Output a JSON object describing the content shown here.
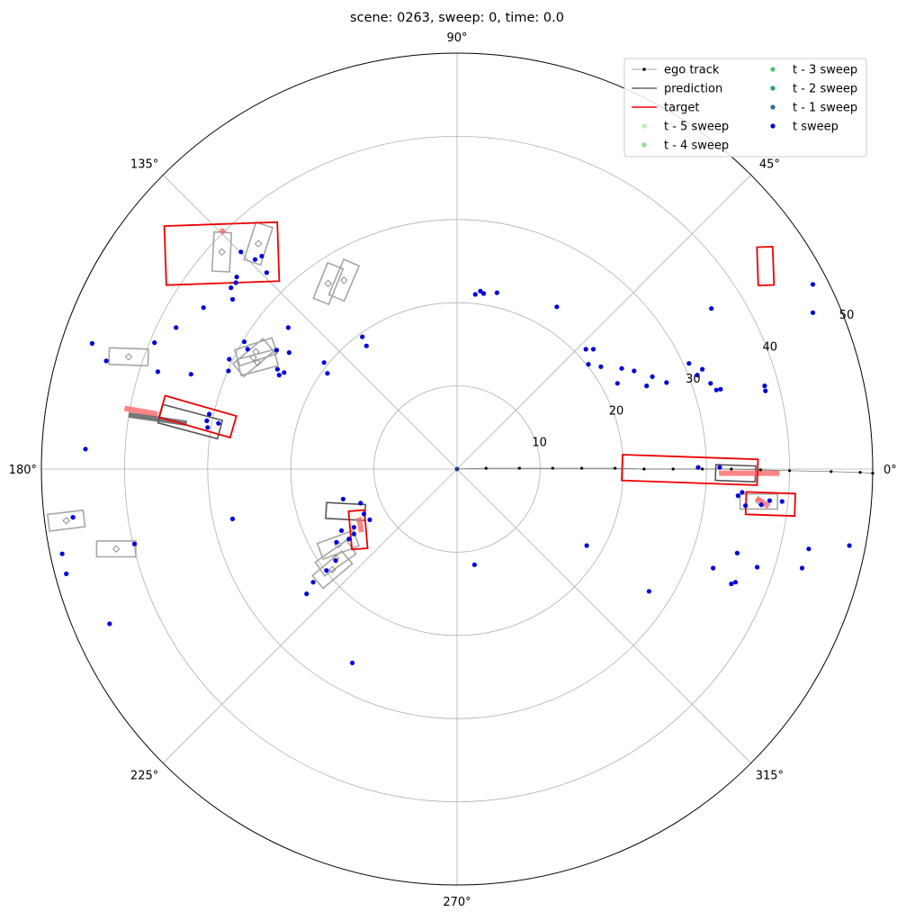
{
  "chart_data": {
    "type": "scatter",
    "projection": "polar",
    "title": "scene: 0263, sweep: 0, time: 0.0",
    "theta_ticks_deg": [
      0,
      45,
      90,
      135,
      180,
      225,
      270,
      315
    ],
    "theta_tick_labels": [
      "0°",
      "45°",
      "90°",
      "135°",
      "180°",
      "225°",
      "270°",
      "315°"
    ],
    "r_ticks": [
      10,
      20,
      30,
      40,
      50
    ],
    "r_tick_labels": [
      "10",
      "20",
      "30",
      "40",
      "50"
    ],
    "r_label_angle_deg": 22.5,
    "rlim": [
      0,
      50
    ],
    "grid": true,
    "legend": {
      "location": "upper right",
      "columns": 2,
      "entries": [
        {
          "label": "ego track",
          "kind": "line-marker",
          "color": "#000000"
        },
        {
          "label": "prediction",
          "kind": "line",
          "color": "#666666"
        },
        {
          "label": "target",
          "kind": "line",
          "color": "#ff0000"
        },
        {
          "label": "t - 5 sweep",
          "kind": "dot",
          "color": "#b4f5b4"
        },
        {
          "label": "t - 4 sweep",
          "kind": "dot",
          "color": "#86e486"
        },
        {
          "label": "t - 3 sweep",
          "kind": "dot",
          "color": "#4dc36f"
        },
        {
          "label": "t - 2 sweep",
          "kind": "dot",
          "color": "#2a9a7e"
        },
        {
          "label": "t - 1 sweep",
          "kind": "dot",
          "color": "#2a6e9a"
        },
        {
          "label": "t sweep",
          "kind": "dot",
          "color": "#0000dd"
        }
      ]
    },
    "series": [
      {
        "name": "ego track",
        "color": "#000000",
        "points_xy": [
          [
            0,
            0
          ],
          [
            3.5,
            0.1
          ],
          [
            7.5,
            0.1
          ],
          [
            11.5,
            0.1
          ],
          [
            15,
            0.1
          ],
          [
            19,
            0.1
          ],
          [
            22.5,
            0
          ],
          [
            26,
            0
          ],
          [
            29.5,
            0
          ],
          [
            33,
            0
          ],
          [
            36.5,
            -0.1
          ],
          [
            40,
            -0.2
          ],
          [
            45,
            -0.3
          ],
          [
            48.5,
            -0.4
          ],
          [
            50,
            -0.5
          ]
        ]
      },
      {
        "name": "t sweep",
        "color": "#0000dd",
        "points_xy": [
          [
            2.2,
            21.0
          ],
          [
            2.8,
            21.4
          ],
          [
            3.2,
            21.1
          ],
          [
            4.8,
            21.2
          ],
          [
            12,
            19.5
          ],
          [
            15.5,
            14.4
          ],
          [
            16.4,
            14.4
          ],
          [
            15.8,
            12.6
          ],
          [
            17.3,
            12.3
          ],
          [
            19.8,
            12.1
          ],
          [
            19.3,
            10.3
          ],
          [
            21.3,
            11.8
          ],
          [
            23.5,
            11.1
          ],
          [
            22.8,
            10.0
          ],
          [
            25.2,
            10.4
          ],
          [
            27.9,
            12.7
          ],
          [
            28.9,
            11.3
          ],
          [
            29.5,
            12.0
          ],
          [
            30.5,
            10.3
          ],
          [
            31.7,
            9.6
          ],
          [
            31.2,
            9.5
          ],
          [
            30.6,
            19.3
          ],
          [
            37.0,
            10.0
          ],
          [
            37.1,
            9.4
          ],
          [
            42.8,
            22.2
          ],
          [
            42.8,
            18.8
          ],
          [
            47.6,
            33.3
          ],
          [
            51.5,
            28.5
          ],
          [
            29.0,
            0.2
          ],
          [
            31.6,
            0.2
          ],
          [
            33.8,
            -3.2
          ],
          [
            34.3,
            -2.8
          ],
          [
            34.7,
            -4.4
          ],
          [
            36.6,
            -4.3
          ],
          [
            37.6,
            -3.8
          ],
          [
            39.1,
            -3.9
          ],
          [
            15.6,
            -9.2
          ],
          [
            23.1,
            -14.7
          ],
          [
            30.8,
            -11.9
          ],
          [
            33.7,
            -10.1
          ],
          [
            33.5,
            -13.6
          ],
          [
            33.0,
            -13.8
          ],
          [
            36.1,
            -11.8
          ],
          [
            41.5,
            -11.9
          ],
          [
            42.3,
            -9.6
          ],
          [
            47.2,
            -9.2
          ],
          [
            2.1,
            -11.5
          ],
          [
            -11.4,
            15.9
          ],
          [
            -10.9,
            14.8
          ],
          [
            -20.3,
            17.0
          ],
          [
            -21.7,
            14.3
          ],
          [
            -16.0,
            12.8
          ],
          [
            -15.6,
            11.5
          ],
          [
            -20.2,
            14.0
          ],
          [
            -20.8,
            11.6
          ],
          [
            -21.6,
            12.0
          ],
          [
            -21.4,
            11.3
          ],
          [
            -25.2,
            14.4
          ],
          [
            -27.5,
            11.8
          ],
          [
            -32.0,
            11.4
          ],
          [
            -36.0,
            11.7
          ],
          [
            -43.9,
            15.1
          ],
          [
            -33.8,
            17.0
          ],
          [
            -42.2,
            13.0
          ],
          [
            -27.4,
            13.2
          ],
          [
            -25.6,
            15.3
          ],
          [
            -27.0,
            20.4
          ],
          [
            -23.5,
            25.6
          ],
          [
            -26.0,
            26.1
          ],
          [
            -24.3,
            25.2
          ],
          [
            -22.9,
            23.6
          ],
          [
            -26.6,
            22.4
          ],
          [
            -27.2,
            21.8
          ],
          [
            -26.5,
            23.1
          ],
          [
            -30.5,
            19.4
          ],
          [
            -36.4,
            15.2
          ],
          [
            -29.8,
            6.6
          ],
          [
            -30.1,
            5.8
          ],
          [
            -28.7,
            5.5
          ],
          [
            -30.0,
            5.0
          ],
          [
            -44.7,
            2.4
          ],
          [
            -27.0,
            -6.0
          ],
          [
            -46.2,
            -5.8
          ],
          [
            -47.5,
            -10.2
          ],
          [
            -47.0,
            -12.6
          ],
          [
            -38.8,
            -9.0
          ],
          [
            -41.8,
            -18.6
          ],
          [
            -13.7,
            -3.6
          ],
          [
            -11.6,
            -4.1
          ],
          [
            -11.2,
            -5.4
          ],
          [
            -10.5,
            -6.1
          ],
          [
            -12.4,
            -7.0
          ],
          [
            -12.4,
            -7.8
          ],
          [
            -13.0,
            -8.4
          ],
          [
            -13.9,
            -7.4
          ],
          [
            -14.5,
            -8.8
          ],
          [
            -18.1,
            -15.0
          ],
          [
            -14.6,
            -11.0
          ],
          [
            -17.3,
            -13.6
          ],
          [
            -15.7,
            -12.2
          ],
          [
            -12.6,
            -23.3
          ]
        ]
      }
    ],
    "target_boxes": [
      {
        "center": [
          37.1,
          24.4
        ],
        "width": 1.9,
        "height": 4.6,
        "angle_deg": 2
      },
      {
        "center": [
          28.0,
          -0.1
        ],
        "width": 16.3,
        "height": 3.1,
        "angle_deg": 358
      },
      {
        "center": [
          37.7,
          -4.2
        ],
        "width": 5.9,
        "height": 2.7,
        "angle_deg": 358
      },
      {
        "center": [
          -31.2,
          6.3
        ],
        "width": 8.9,
        "height": 2.7,
        "angle_deg": 344
      },
      {
        "center": [
          -28.3,
          25.9
        ],
        "width": 13.6,
        "height": 7.1,
        "angle_deg": 2
      },
      {
        "center": [
          -11.9,
          -7.3
        ],
        "width": 1.9,
        "height": 4.6,
        "angle_deg": 5
      }
    ],
    "prediction_boxes": [
      {
        "center": [
          33.5,
          -0.5
        ],
        "width": 4.8,
        "height": 1.9,
        "angle_deg": 358,
        "shade": "dark"
      },
      {
        "center": [
          -32.1,
          5.7
        ],
        "width": 7.4,
        "height": 2.3,
        "angle_deg": 345,
        "shade": "dark"
      },
      {
        "center": [
          -13.4,
          -5.1
        ],
        "width": 4.7,
        "height": 1.9,
        "angle_deg": 357,
        "shade": "dark"
      },
      {
        "center": [
          -28.3,
          26.1
        ],
        "width": 2.1,
        "height": 4.7,
        "angle_deg": 357,
        "shade": "light"
      },
      {
        "center": [
          -23.9,
          27.1
        ],
        "width": 2.1,
        "height": 4.7,
        "angle_deg": 342,
        "shade": "light"
      },
      {
        "center": [
          -15.5,
          22.3
        ],
        "width": 2.0,
        "height": 4.6,
        "angle_deg": 338,
        "shade": "light"
      },
      {
        "center": [
          -13.6,
          22.7
        ],
        "width": 2.0,
        "height": 4.6,
        "angle_deg": 337,
        "shade": "light"
      },
      {
        "center": [
          -24.2,
          14.1
        ],
        "width": 4.7,
        "height": 2.0,
        "angle_deg": 18,
        "shade": "light"
      },
      {
        "center": [
          -24.5,
          13.4
        ],
        "width": 4.7,
        "height": 2.0,
        "angle_deg": 40,
        "shade": "light"
      },
      {
        "center": [
          -24.0,
          12.8
        ],
        "width": 4.6,
        "height": 2.0,
        "angle_deg": 15,
        "shade": "light"
      },
      {
        "center": [
          -39.5,
          13.5
        ],
        "width": 4.7,
        "height": 2.0,
        "angle_deg": 358,
        "shade": "light"
      },
      {
        "center": [
          -47.0,
          -6.2
        ],
        "width": 4.3,
        "height": 2.0,
        "angle_deg": 7,
        "shade": "light"
      },
      {
        "center": [
          -41.0,
          -9.6
        ],
        "width": 4.7,
        "height": 1.9,
        "angle_deg": 360,
        "shade": "light"
      },
      {
        "center": [
          -14.3,
          -9.1
        ],
        "width": 4.6,
        "height": 2.0,
        "angle_deg": 20,
        "shade": "light"
      },
      {
        "center": [
          -14.6,
          -10.7
        ],
        "width": 4.6,
        "height": 2.0,
        "angle_deg": 35,
        "shade": "light"
      },
      {
        "center": [
          -15.0,
          -12.1
        ],
        "width": 4.6,
        "height": 2.0,
        "angle_deg": 40,
        "shade": "light"
      },
      {
        "center": [
          36.3,
          -3.9
        ],
        "width": 4.5,
        "height": 1.8,
        "angle_deg": 360,
        "shade": "light"
      }
    ],
    "motion_trails": [
      {
        "from": [
          31.5,
          -0.5
        ],
        "to": [
          38.8,
          -0.5
        ],
        "color": "#ff6666"
      },
      {
        "from": [
          -40.0,
          7.3
        ],
        "to": [
          -36.0,
          6.6
        ],
        "color": "#ff6666"
      },
      {
        "from": [
          -39.5,
          6.5
        ],
        "to": [
          -32.5,
          5.5
        ],
        "color": "#555555"
      },
      {
        "from": [
          -28.0,
          28.8
        ],
        "to": [
          -28.4,
          28.4
        ],
        "color": "#ff6666"
      },
      {
        "from": [
          -11.8,
          -5.8
        ],
        "to": [
          -11.5,
          -7.6
        ],
        "color": "#ff6666"
      },
      {
        "from": [
          36.0,
          -3.5
        ],
        "to": [
          37.5,
          -4.5
        ],
        "color": "#ff6666"
      }
    ]
  }
}
